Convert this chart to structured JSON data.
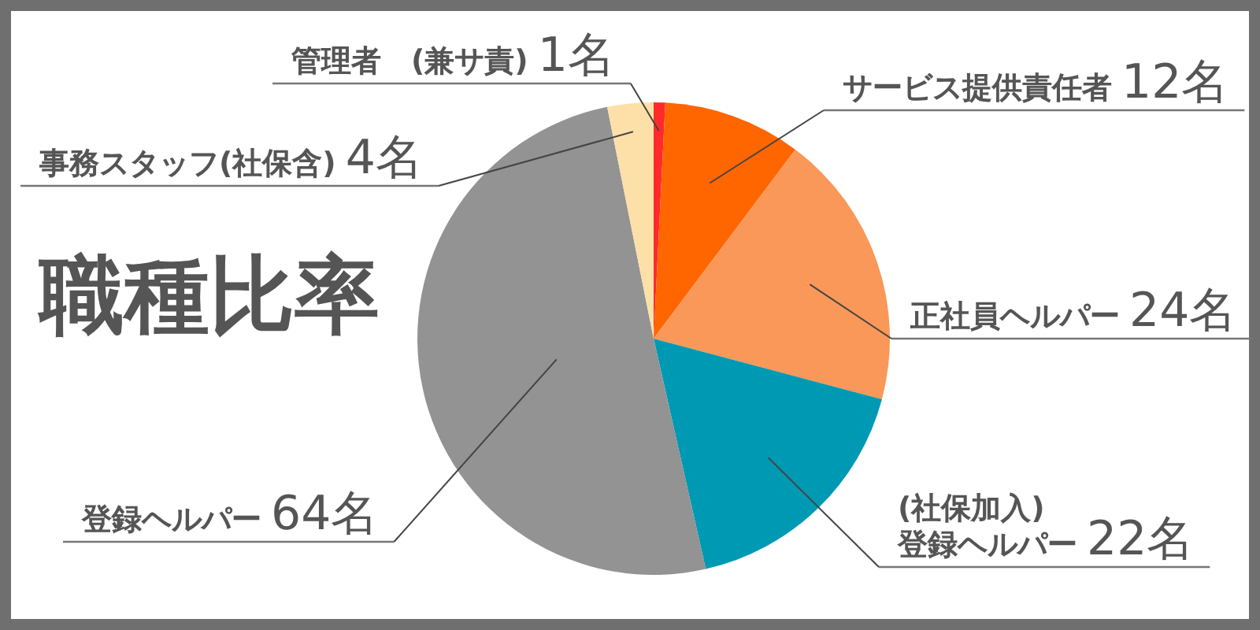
{
  "chart_data": {
    "type": "pie",
    "title": "職種比率",
    "categories": [
      "管理者　(兼サ責)",
      "サービス提供責任者",
      "正社員ヘルパー",
      "(社保加入)\n登録ヘルパー",
      "登録ヘルパー",
      "事務スタッフ(社保含)"
    ],
    "values": [
      1,
      12,
      24,
      22,
      64,
      4
    ],
    "value_labels": [
      "1名",
      "12名",
      "24名",
      "22名",
      "64名",
      "4名"
    ],
    "colors": [
      "#ff2a2a",
      "#ff6600",
      "#f99858",
      "#0099b3",
      "#939393",
      "#fde0a8"
    ]
  }
}
